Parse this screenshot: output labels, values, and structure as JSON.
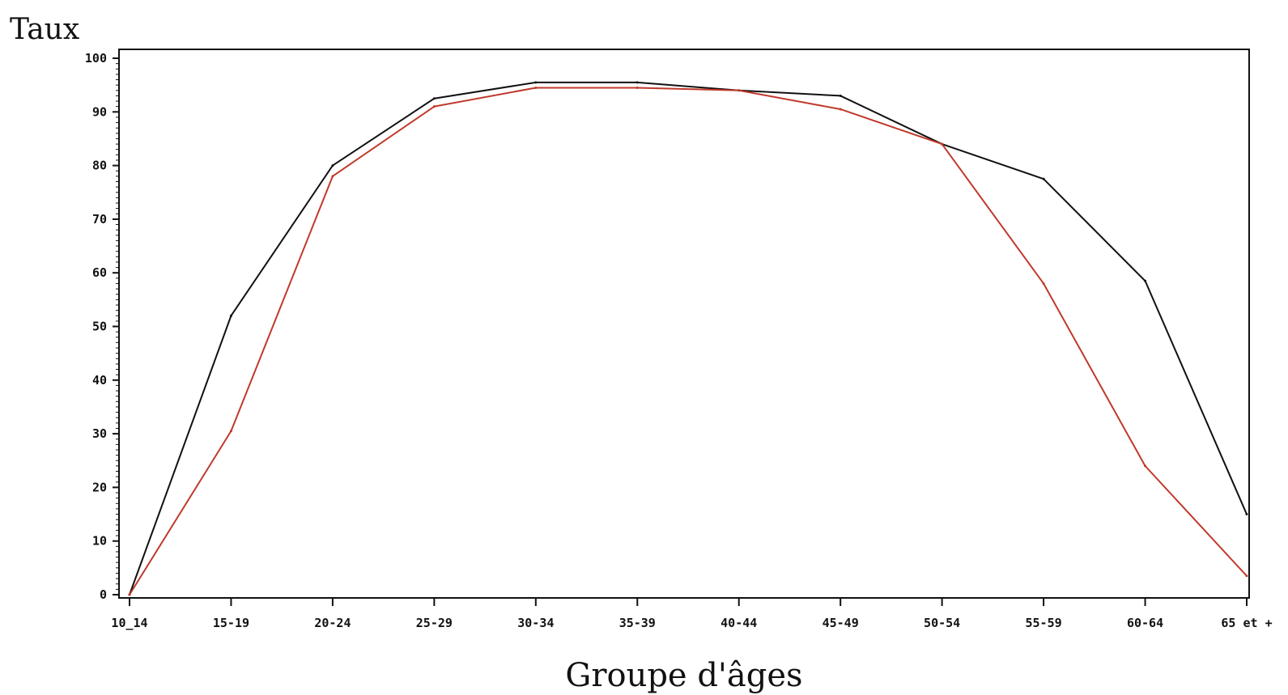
{
  "chart_data": {
    "type": "line",
    "title": "",
    "xlabel": "Groupe d'âges",
    "ylabel": "Taux",
    "categories": [
      "10_14",
      "15-19",
      "20-24",
      "25-29",
      "30-34",
      "35-39",
      "40-44",
      "45-49",
      "50-54",
      "55-59",
      "60-64",
      "65 et +"
    ],
    "yticks": [
      0,
      10,
      20,
      30,
      40,
      50,
      60,
      70,
      80,
      90,
      100
    ],
    "ylim": [
      0,
      100
    ],
    "grid": false,
    "legend": "none",
    "series": [
      {
        "color": "#111111",
        "values": [
          0,
          52,
          80,
          92.5,
          95.5,
          95.5,
          94,
          93,
          84,
          77.5,
          58.5,
          15
        ]
      },
      {
        "color": "#c0392b",
        "values": [
          0,
          30.5,
          78,
          91,
          94.5,
          94.5,
          94,
          90.5,
          84,
          58,
          24,
          3.5
        ]
      }
    ]
  }
}
